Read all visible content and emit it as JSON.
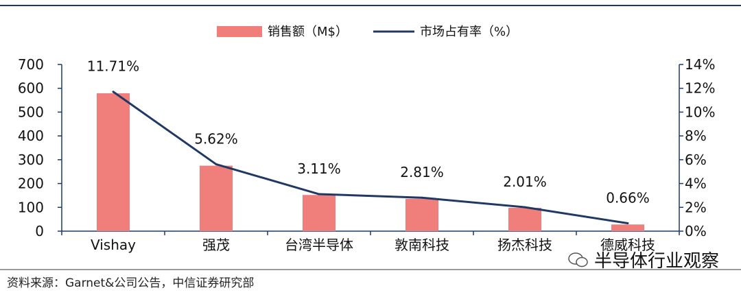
{
  "chart_data": {
    "type": "bar+line",
    "categories": [
      "Vishay",
      "强茂",
      "台湾半导体",
      "敦南科技",
      "扬杰科技",
      "德威科技"
    ],
    "bar_series": {
      "name": "销售额（M$）",
      "values": [
        579,
        275,
        152,
        136,
        98,
        28
      ],
      "color": "#f07f7c"
    },
    "line_series": {
      "name": "市场占有率（%）",
      "values": [
        11.71,
        5.62,
        3.11,
        2.81,
        2.01,
        0.66
      ],
      "labels": [
        "11.71%",
        "5.62%",
        "3.11%",
        "2.81%",
        "2.01%",
        "0.66%"
      ],
      "color": "#1f3864"
    },
    "y_left": {
      "min": 0,
      "max": 700,
      "ticks": [
        "0",
        "100",
        "200",
        "300",
        "400",
        "500",
        "600",
        "700"
      ]
    },
    "y_right": {
      "min": 0,
      "max": 14,
      "ticks": [
        "0%",
        "2%",
        "4%",
        "6%",
        "8%",
        "10%",
        "12%",
        "14%"
      ]
    },
    "legend_position": "top-center",
    "grid": false
  },
  "source_text": "资料来源：Garnet&公司公告，中信证券研究部",
  "watermark_text": "半导体行业观察"
}
